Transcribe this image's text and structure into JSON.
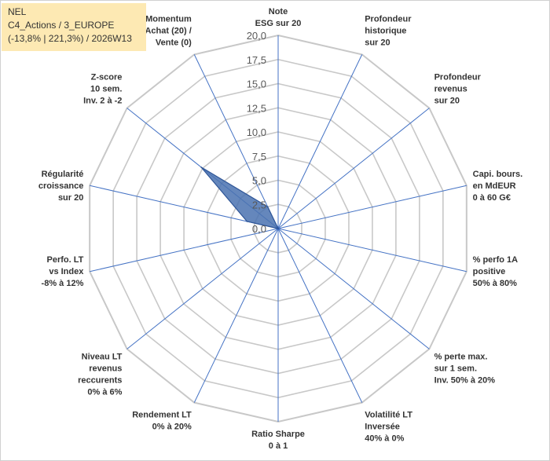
{
  "header": {
    "line1": "NEL",
    "line2": "C4_Actions / 3_EUROPE",
    "line3": "(-13,8% | 221,3%) / 2026W13"
  },
  "chart_data": {
    "type": "radar",
    "rmin": 0,
    "rmax": 20,
    "ticks": [
      "0,0",
      "2,5",
      "5,0",
      "7,5",
      "10,0",
      "12,5",
      "15,0",
      "17,5",
      "20,0"
    ],
    "axes": [
      {
        "label": [
          "Note",
          "ESG sur 20"
        ],
        "value": 0
      },
      {
        "label": [
          "Profondeur",
          "historique",
          "sur 20"
        ],
        "value": 0
      },
      {
        "label": [
          "Profondeur",
          "revenus",
          "sur 20"
        ],
        "value": 0
      },
      {
        "label": [
          "Capi. bours.",
          "en MdEUR",
          "0 à 60 G€"
        ],
        "value": 0
      },
      {
        "label": [
          "% perfo 1A",
          "positive",
          "50% à 80%"
        ],
        "value": 0
      },
      {
        "label": [
          "% perte max.",
          "sur 1 sem.",
          "Inv. 50% à 20%"
        ],
        "value": 0
      },
      {
        "label": [
          "Volatilité LT",
          "Inversée",
          "40% à 0%"
        ],
        "value": 0
      },
      {
        "label": [
          "Ratio Sharpe",
          "0 à 1"
        ],
        "value": 0
      },
      {
        "label": [
          "Rendement LT",
          "0% à 20%"
        ],
        "value": 0
      },
      {
        "label": [
          "Niveau LT",
          "revenus",
          "reccurents",
          "0% à 6%"
        ],
        "value": 0
      },
      {
        "label": [
          "Perfo. LT",
          "vs Index",
          "-8% à 12%"
        ],
        "value": 0
      },
      {
        "label": [
          "Régularité",
          "croissance",
          "sur 20"
        ],
        "value": 3.3
      },
      {
        "label": [
          "Z-score",
          "10 sem.",
          "Inv. 2 à -2"
        ],
        "value": 10.2
      },
      {
        "label": [
          "Momentum",
          "Achat (20) /",
          "Vente (0)"
        ],
        "value": 2.5
      }
    ],
    "series": [
      {
        "fill": "#4a72b0",
        "stroke": "#2e5597"
      }
    ],
    "grid": true,
    "grid_color": "#c8c8c8",
    "axis_color": "#4472c4"
  }
}
